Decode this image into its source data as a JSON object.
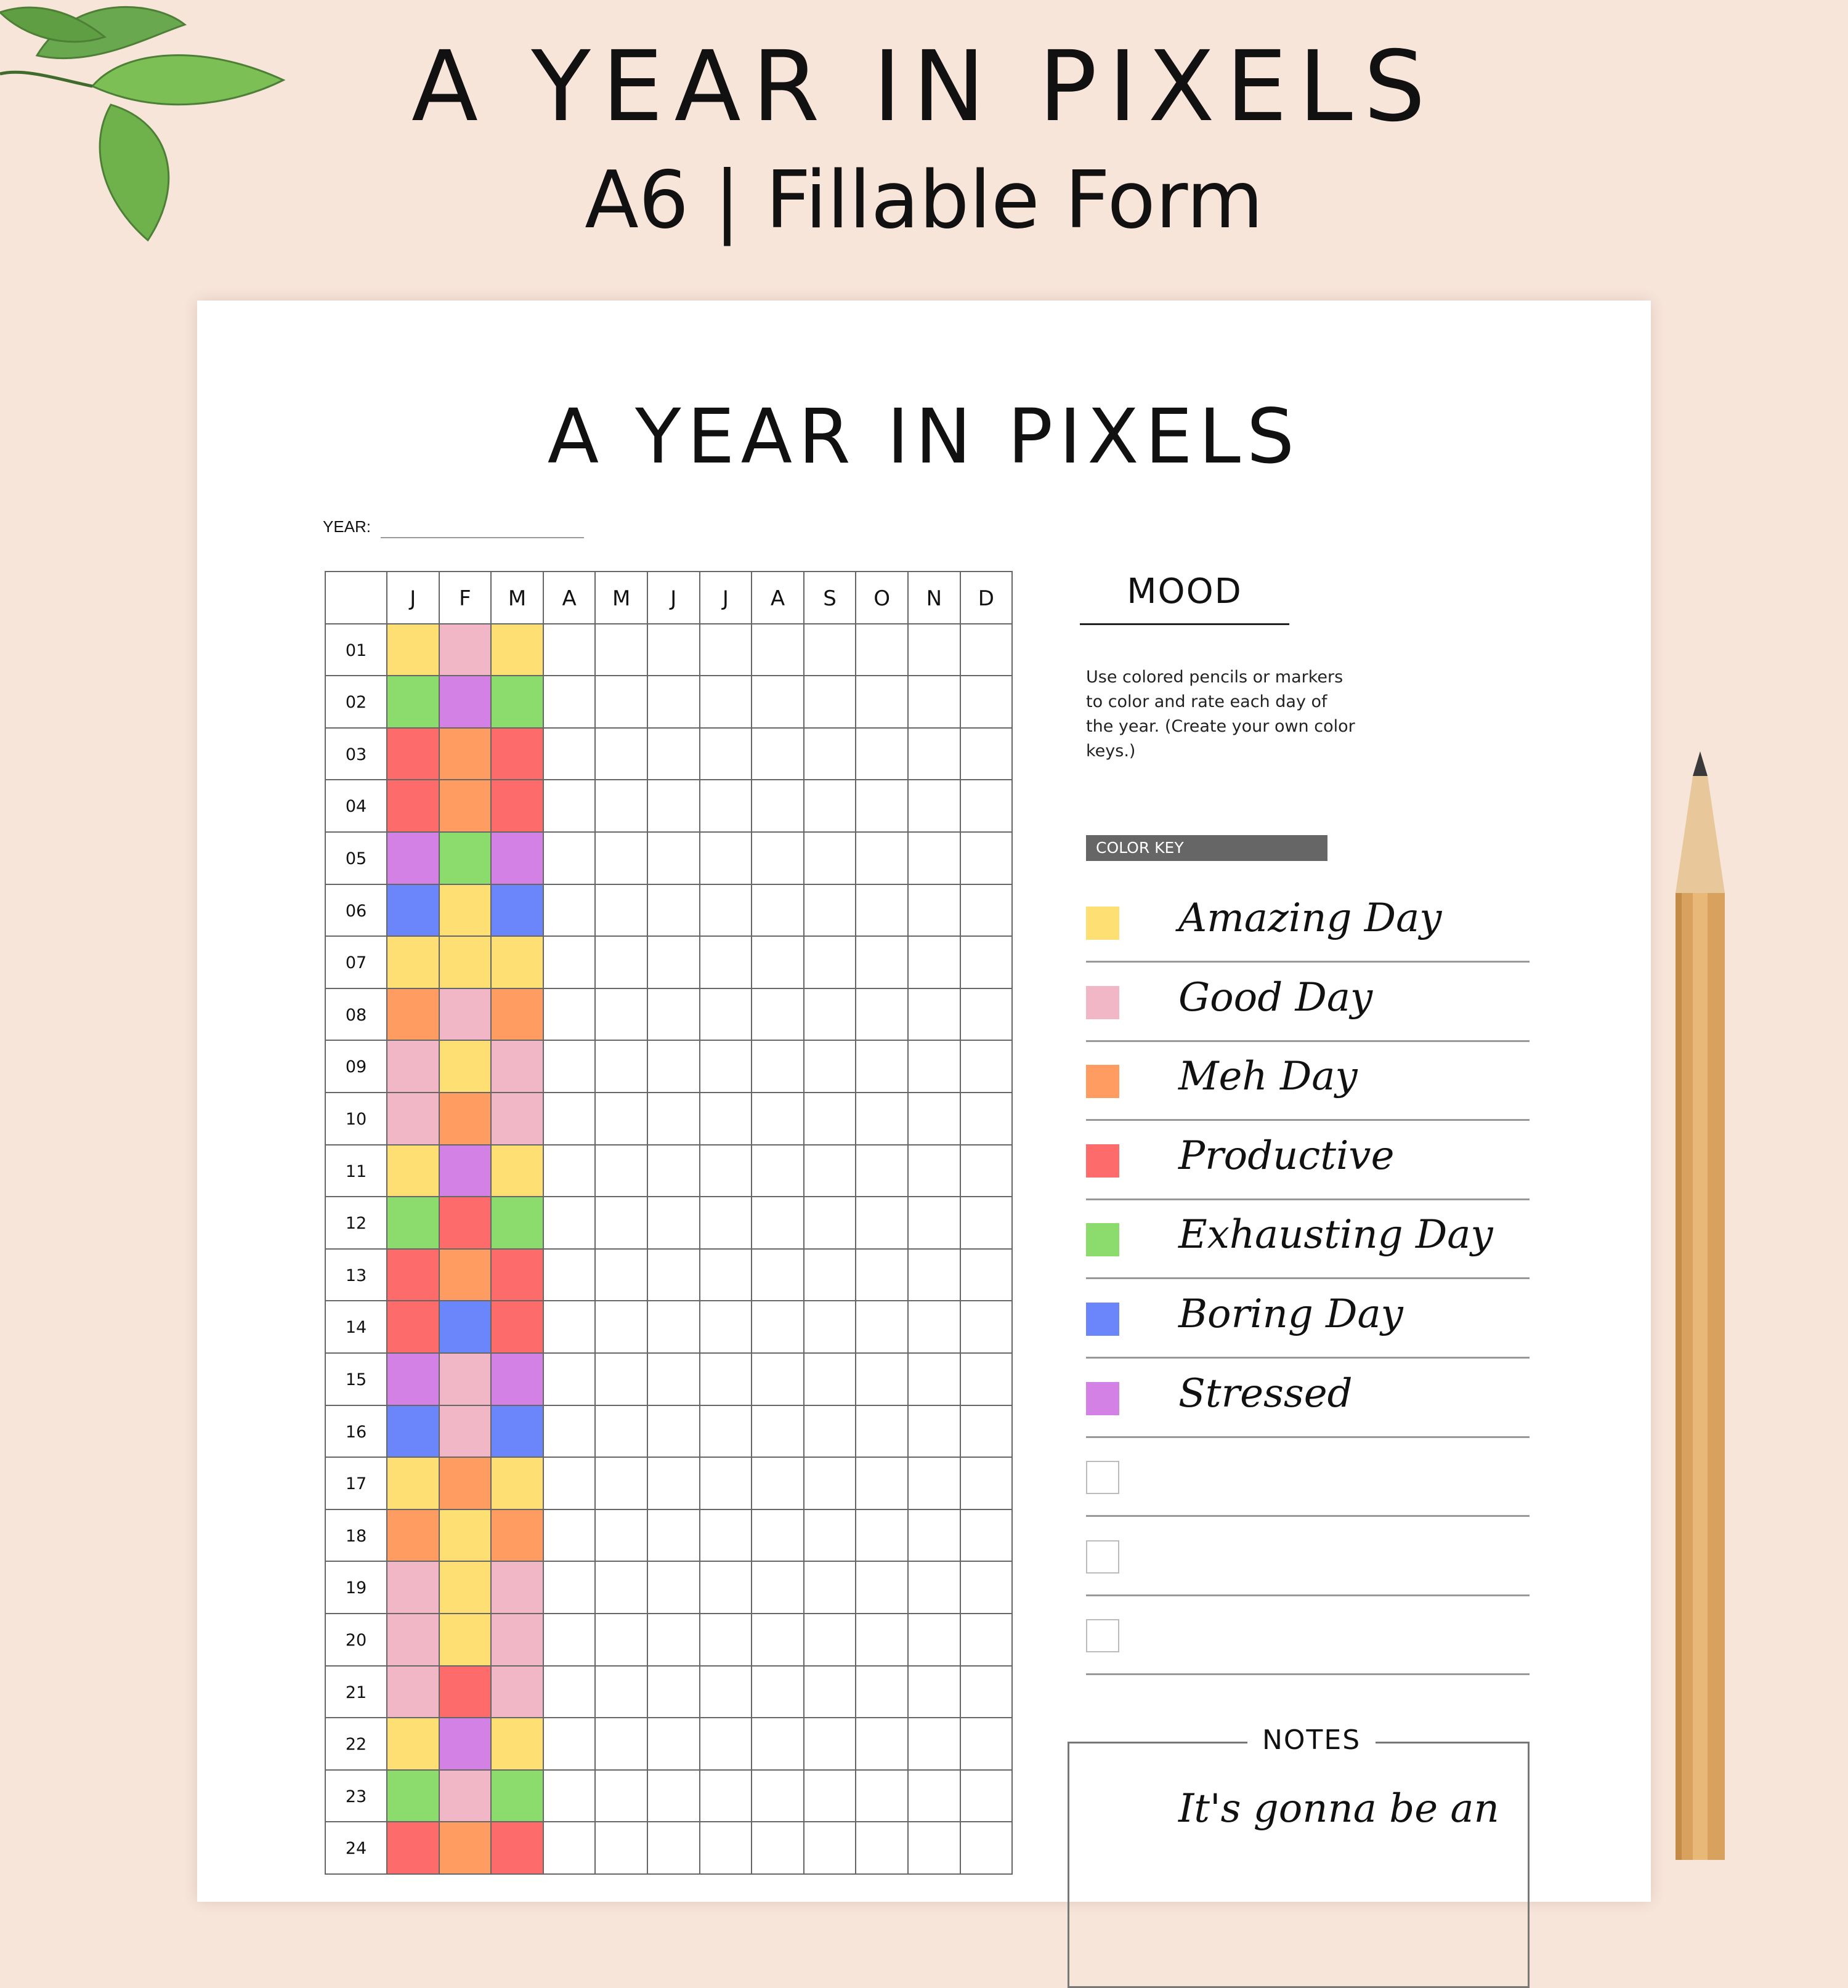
{
  "header": {
    "title": "A YEAR IN PIXELS",
    "subtitle": "A6 | Fillable Form"
  },
  "sheet": {
    "title": "A YEAR IN PIXELS",
    "year_label": "YEAR:",
    "months": [
      "J",
      "F",
      "M",
      "A",
      "M",
      "J",
      "J",
      "A",
      "S",
      "O",
      "N",
      "D"
    ],
    "days": [
      "01",
      "02",
      "03",
      "04",
      "05",
      "06",
      "07",
      "08",
      "09",
      "10",
      "11",
      "12",
      "13",
      "14",
      "15",
      "16",
      "17",
      "18",
      "19",
      "20",
      "21",
      "22",
      "23",
      "24"
    ],
    "filled": [
      [
        "amazing",
        "good",
        "amazing"
      ],
      [
        "exhausting",
        "stressed",
        "exhausting"
      ],
      [
        "productive",
        "meh",
        "productive"
      ],
      [
        "productive",
        "meh",
        "productive"
      ],
      [
        "stressed",
        "exhausting",
        "stressed"
      ],
      [
        "boring",
        "amazing",
        "boring"
      ],
      [
        "amazing",
        "amazing",
        "amazing"
      ],
      [
        "meh",
        "good",
        "meh"
      ],
      [
        "good",
        "amazing",
        "good"
      ],
      [
        "good",
        "meh",
        "good"
      ],
      [
        "amazing",
        "stressed",
        "amazing"
      ],
      [
        "exhausting",
        "productive",
        "exhausting"
      ],
      [
        "productive",
        "meh",
        "productive"
      ],
      [
        "productive",
        "boring",
        "productive"
      ],
      [
        "stressed",
        "good",
        "stressed"
      ],
      [
        "boring",
        "good",
        "boring"
      ],
      [
        "amazing",
        "meh",
        "amazing"
      ],
      [
        "meh",
        "amazing",
        "meh"
      ],
      [
        "good",
        "amazing",
        "good"
      ],
      [
        "good",
        "amazing",
        "good"
      ],
      [
        "good",
        "productive",
        "good"
      ],
      [
        "amazing",
        "stressed",
        "amazing"
      ],
      [
        "exhausting",
        "good",
        "exhausting"
      ],
      [
        "productive",
        "meh",
        "productive"
      ]
    ]
  },
  "mood": {
    "title": "MOOD",
    "instructions": "Use colored pencils or markers to color and rate each day of the year. (Create your own color keys.)",
    "color_key_label": "COLOR KEY",
    "keys": [
      {
        "id": "amazing",
        "label": "Amazing Day",
        "color": "#fddf74"
      },
      {
        "id": "good",
        "label": "Good Day",
        "color": "#f2b7c6"
      },
      {
        "id": "meh",
        "label": "Meh Day",
        "color": "#fe9c62"
      },
      {
        "id": "productive",
        "label": "Productive",
        "color": "#fd6b6b"
      },
      {
        "id": "exhausting",
        "label": "Exhausting Day",
        "color": "#8cdb6d"
      },
      {
        "id": "boring",
        "label": "Boring Day",
        "color": "#6b86fb"
      },
      {
        "id": "stressed",
        "label": "Stressed",
        "color": "#d481e6"
      },
      {
        "id": "blank1",
        "label": "",
        "color": "#ffffff"
      },
      {
        "id": "blank2",
        "label": "",
        "color": "#ffffff"
      },
      {
        "id": "blank3",
        "label": "",
        "color": "#ffffff"
      }
    ]
  },
  "notes": {
    "label": "NOTES",
    "text": "It's gonna be an"
  },
  "colors": {
    "background": "#f8e5da",
    "grid_line": "#666666"
  }
}
